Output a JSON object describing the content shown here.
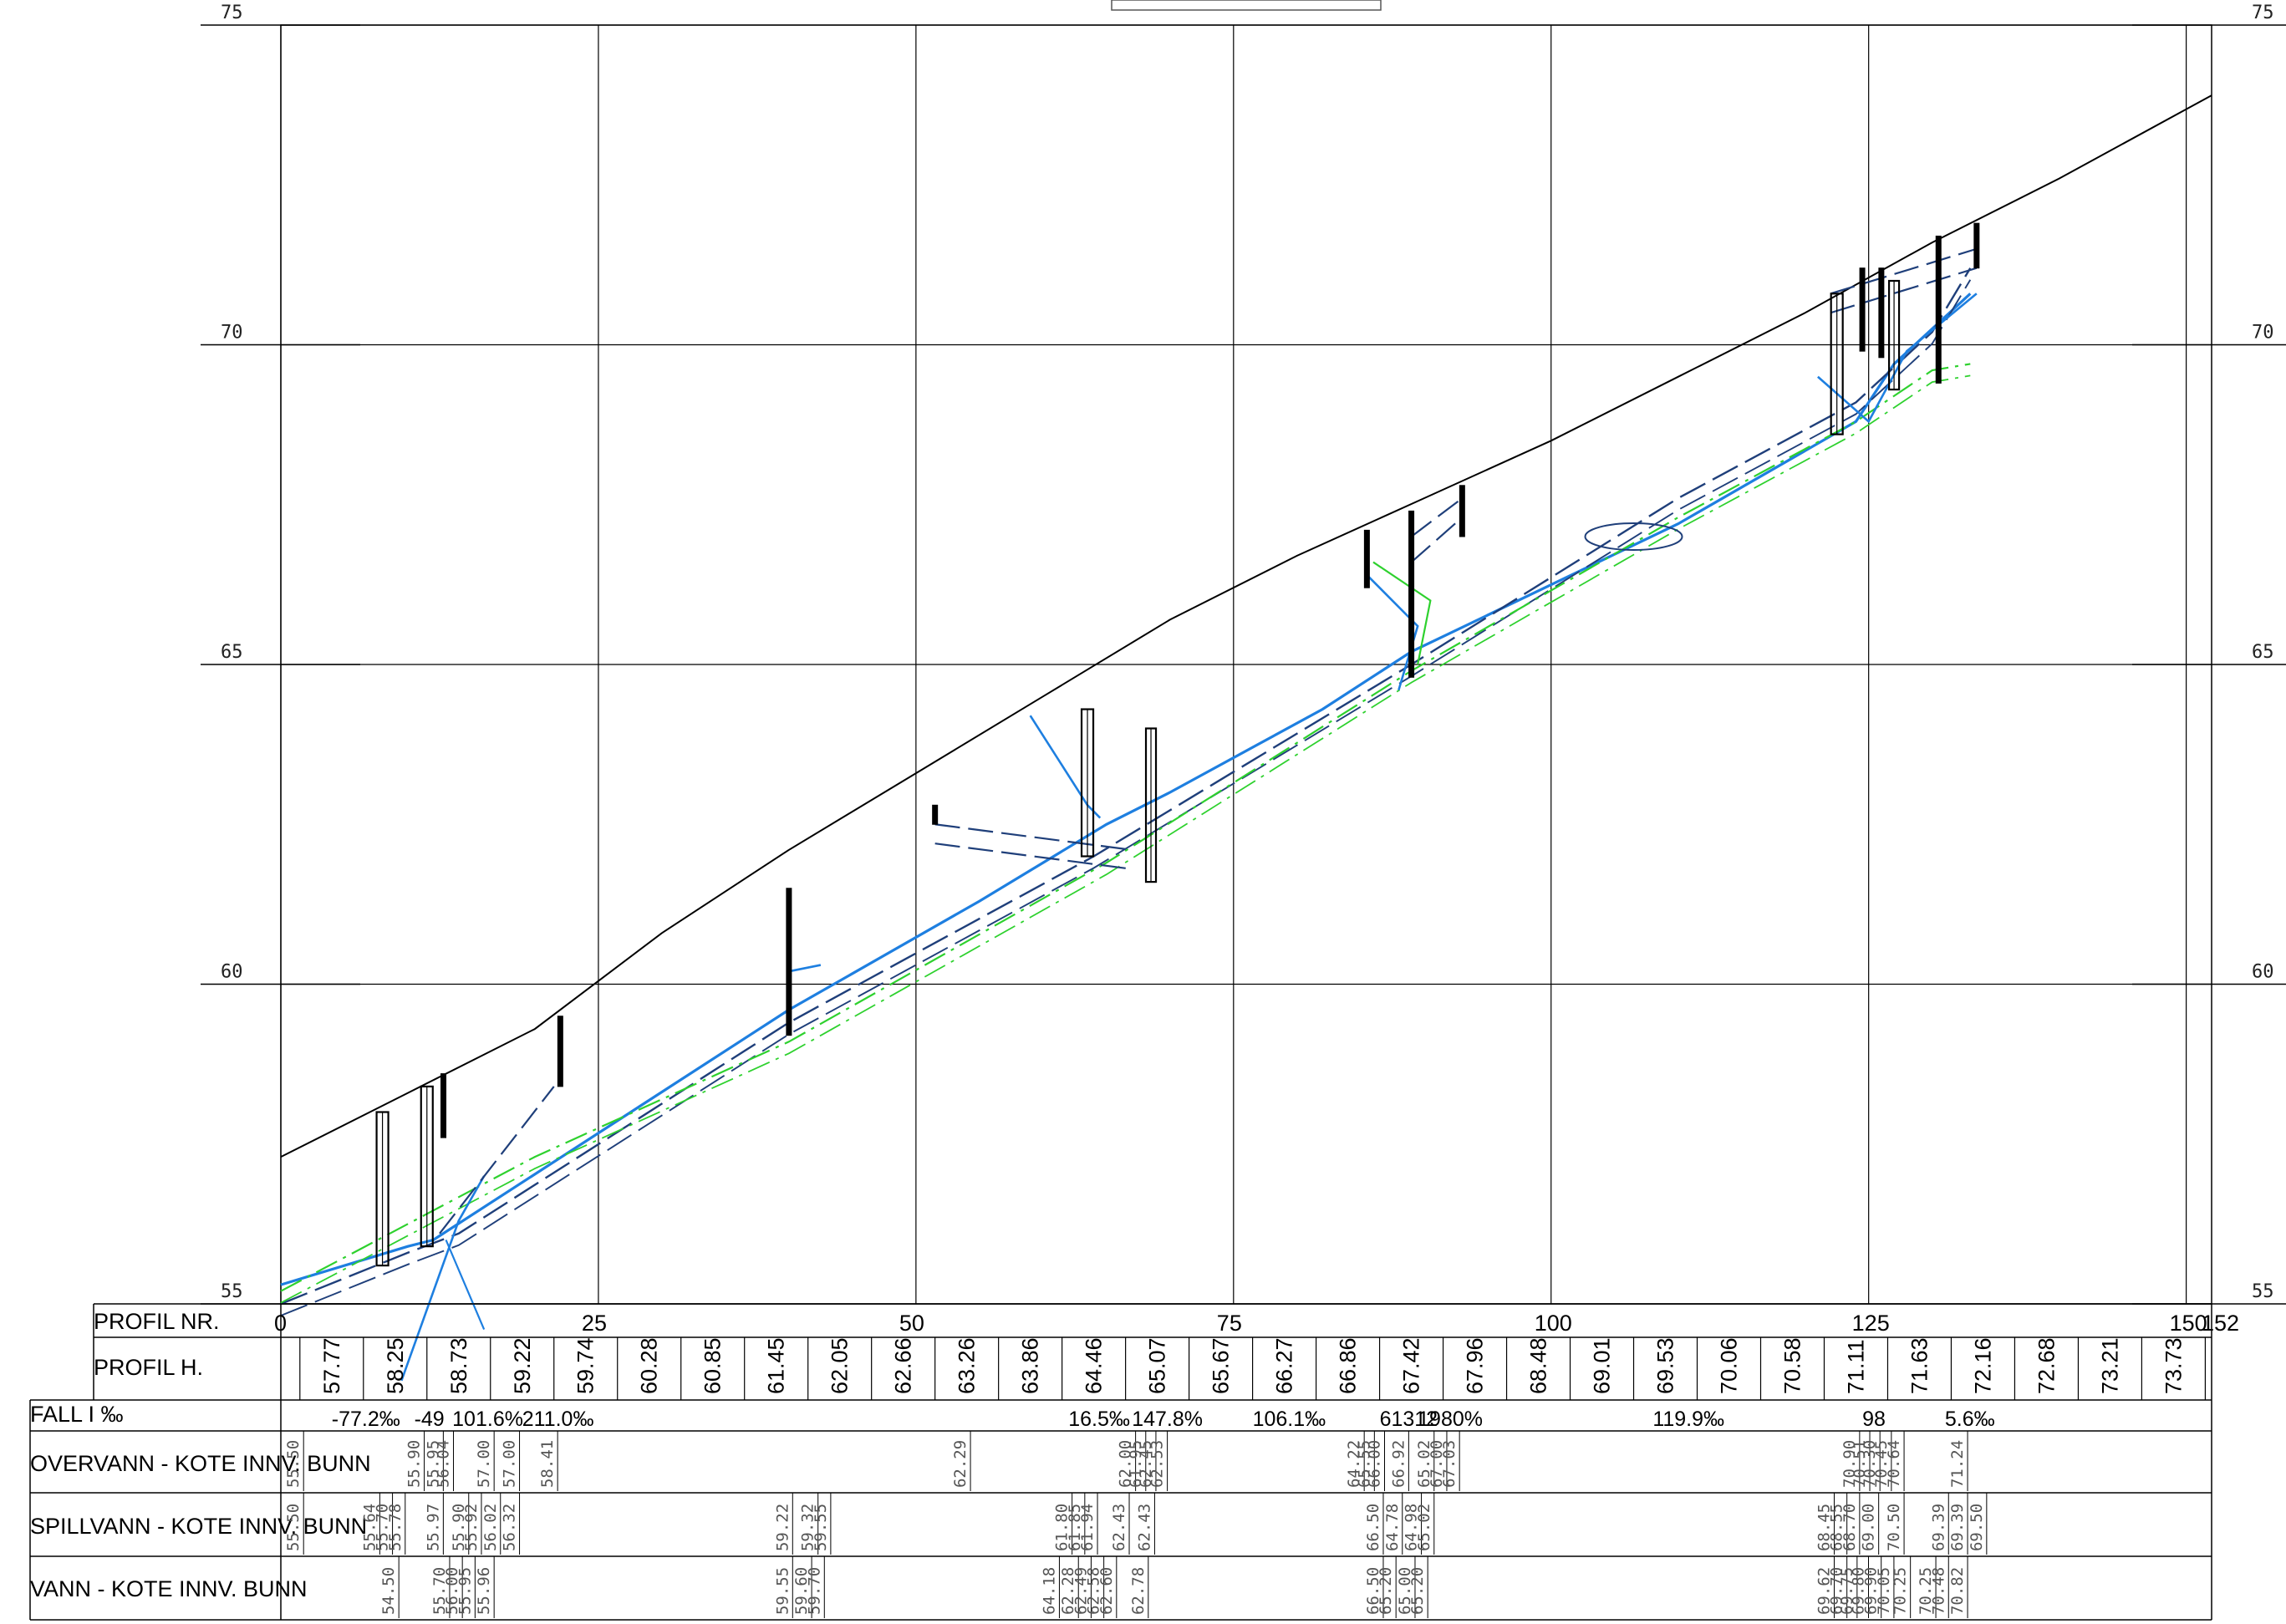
{
  "title_box": "",
  "y_ticks": [
    55,
    60,
    65,
    70,
    75
  ],
  "x_ticks": [
    0,
    25,
    50,
    75,
    100,
    125,
    150
  ],
  "x_end_label": "152",
  "rows": {
    "profil_nr": "PROFIL NR.",
    "profil_h": "PROFIL H.",
    "fall": "FALL I ‰",
    "overvann": "OVERVANN - KOTE INNV. BUNN",
    "spillvann": "SPILLVANN - KOTE INNV. BUNN",
    "vann": "VANN - KOTE INNV. BUNN"
  },
  "profil_h_values": [
    {
      "x": 4,
      "v": "57.77"
    },
    {
      "x": 9,
      "v": "58.25"
    },
    {
      "x": 14,
      "v": "58.73"
    },
    {
      "x": 19,
      "v": "59.22"
    },
    {
      "x": 24,
      "v": "59.74"
    },
    {
      "x": 29,
      "v": "60.28"
    },
    {
      "x": 34,
      "v": "60.85"
    },
    {
      "x": 39,
      "v": "61.45"
    },
    {
      "x": 44,
      "v": "62.05"
    },
    {
      "x": 49,
      "v": "62.66"
    },
    {
      "x": 54,
      "v": "63.26"
    },
    {
      "x": 59,
      "v": "63.86"
    },
    {
      "x": 64,
      "v": "64.46"
    },
    {
      "x": 69,
      "v": "65.07"
    },
    {
      "x": 74,
      "v": "65.67"
    },
    {
      "x": 79,
      "v": "66.27"
    },
    {
      "x": 84,
      "v": "66.86"
    },
    {
      "x": 89,
      "v": "67.42"
    },
    {
      "x": 94,
      "v": "67.96"
    },
    {
      "x": 99,
      "v": "68.48"
    },
    {
      "x": 104,
      "v": "69.01"
    },
    {
      "x": 109,
      "v": "69.53"
    },
    {
      "x": 114,
      "v": "70.06"
    },
    {
      "x": 119,
      "v": "70.58"
    },
    {
      "x": 124,
      "v": "71.11"
    },
    {
      "x": 129,
      "v": "71.63"
    },
    {
      "x": 134,
      "v": "72.16"
    },
    {
      "x": 139,
      "v": "72.68"
    },
    {
      "x": 144,
      "v": "73.21"
    },
    {
      "x": 149,
      "v": "73.73"
    }
  ],
  "fall_values": [
    {
      "x": 4,
      "v": "-77.2‰"
    },
    {
      "x": 10.5,
      "v": "-49"
    },
    {
      "x": 13.5,
      "v": "101.6%"
    },
    {
      "x": 19,
      "v": "211.0‰"
    },
    {
      "x": 62,
      "v": "16.5‰"
    },
    {
      "x": 67,
      "v": "147.8%"
    },
    {
      "x": 76.5,
      "v": "106.1‰"
    },
    {
      "x": 86.5,
      "v": "61312"
    },
    {
      "x": 89.5,
      "v": "1980%"
    },
    {
      "x": 108,
      "v": "119.9‰"
    },
    {
      "x": 124.5,
      "v": "98"
    },
    {
      "x": 131,
      "v": "5.6‰"
    }
  ],
  "overvann_values": [
    {
      "x": 1,
      "v": "55.50"
    },
    {
      "x": 10.5,
      "v": "55.90"
    },
    {
      "x": 12,
      "v": "55.95"
    },
    {
      "x": 12.8,
      "v": "56.04"
    },
    {
      "x": 16,
      "v": "57.00"
    },
    {
      "x": 18,
      "v": "57.00"
    },
    {
      "x": 21,
      "v": "58.41"
    },
    {
      "x": 53.5,
      "v": "62.29"
    },
    {
      "x": 66.5,
      "v": "62.00"
    },
    {
      "x": 67.3,
      "v": "61.95"
    },
    {
      "x": 68.1,
      "v": "62.45"
    },
    {
      "x": 69,
      "v": "62.53"
    },
    {
      "x": 84.5,
      "v": "64.22"
    },
    {
      "x": 85.3,
      "v": "65.55"
    },
    {
      "x": 86.1,
      "v": "66.00"
    },
    {
      "x": 88,
      "v": "66.92"
    },
    {
      "x": 90,
      "v": "65.02"
    },
    {
      "x": 91,
      "v": "67.00"
    },
    {
      "x": 92,
      "v": "67.03"
    },
    {
      "x": 123.5,
      "v": "70.90"
    },
    {
      "x": 124.3,
      "v": "70.51"
    },
    {
      "x": 125.1,
      "v": "70.30"
    },
    {
      "x": 126,
      "v": "70.45"
    },
    {
      "x": 127,
      "v": "70.64"
    },
    {
      "x": 132,
      "v": "71.24"
    }
  ],
  "spillvann_values": [
    {
      "x": 1,
      "v": "55.50"
    },
    {
      "x": 7,
      "v": "55.64"
    },
    {
      "x": 8,
      "v": "55.70"
    },
    {
      "x": 9,
      "v": "55.78"
    },
    {
      "x": 12,
      "v": "55.97"
    },
    {
      "x": 14,
      "v": "55.90"
    },
    {
      "x": 15,
      "v": "55.92"
    },
    {
      "x": 16.5,
      "v": "56.02"
    },
    {
      "x": 18,
      "v": "56.32"
    },
    {
      "x": 39.5,
      "v": "59.22"
    },
    {
      "x": 41.5,
      "v": "59.32"
    },
    {
      "x": 42.5,
      "v": "59.55"
    },
    {
      "x": 61.5,
      "v": "61.80"
    },
    {
      "x": 62.5,
      "v": "61.85"
    },
    {
      "x": 63.5,
      "v": "61.94"
    },
    {
      "x": 66,
      "v": "62.43"
    },
    {
      "x": 68,
      "v": "62.43"
    },
    {
      "x": 86,
      "v": "66.50"
    },
    {
      "x": 87.5,
      "v": "64.78"
    },
    {
      "x": 89,
      "v": "64.98"
    },
    {
      "x": 90,
      "v": "65.02"
    },
    {
      "x": 121.5,
      "v": "68.45"
    },
    {
      "x": 122.5,
      "v": "68.55"
    },
    {
      "x": 123.5,
      "v": "68.70"
    },
    {
      "x": 125,
      "v": "69.00"
    },
    {
      "x": 127,
      "v": "70.50"
    },
    {
      "x": 130.5,
      "v": "69.39"
    },
    {
      "x": 132,
      "v": "69.39"
    },
    {
      "x": 133.5,
      "v": "69.50"
    }
  ],
  "vann_values": [
    {
      "x": 8.5,
      "v": "54.50"
    },
    {
      "x": 12.5,
      "v": "55.70"
    },
    {
      "x": 13.5,
      "v": "56.00"
    },
    {
      "x": 14.5,
      "v": "55.95"
    },
    {
      "x": 16,
      "v": "55.96"
    },
    {
      "x": 39.5,
      "v": "59.55"
    },
    {
      "x": 41,
      "v": "59.60"
    },
    {
      "x": 42,
      "v": "59.70"
    },
    {
      "x": 60.5,
      "v": "64.18"
    },
    {
      "x": 62,
      "v": "62.28"
    },
    {
      "x": 63,
      "v": "62.49"
    },
    {
      "x": 64,
      "v": "62.58"
    },
    {
      "x": 65,
      "v": "62.60"
    },
    {
      "x": 67.5,
      "v": "62.78"
    },
    {
      "x": 86,
      "v": "66.50"
    },
    {
      "x": 87,
      "v": "65.20"
    },
    {
      "x": 88.5,
      "v": "65.00"
    },
    {
      "x": 89.5,
      "v": "65.20"
    },
    {
      "x": 121.5,
      "v": "69.62"
    },
    {
      "x": 122.5,
      "v": "69.70"
    },
    {
      "x": 123.3,
      "v": "69.75"
    },
    {
      "x": 124.2,
      "v": "69.80"
    },
    {
      "x": 125.2,
      "v": "69.90"
    },
    {
      "x": 126.2,
      "v": "70.05"
    },
    {
      "x": 127.5,
      "v": "70.25"
    },
    {
      "x": 129.5,
      "v": "70.25"
    },
    {
      "x": 130.5,
      "v": "70.48"
    },
    {
      "x": 132,
      "v": "70.82"
    }
  ],
  "colors": {
    "terrain": "#000000",
    "overvann": "#1e7fe0",
    "spillvann": "#1f3f7a",
    "vann": "#2ed12e",
    "grid": "#000000",
    "manhole": "#000000"
  },
  "chart_data": {
    "type": "line",
    "xlabel": "PROFIL NR.",
    "ylabel": "",
    "xlim": [
      0,
      152
    ],
    "ylim": [
      55,
      75
    ],
    "series": [
      {
        "points": [
          [
            0,
            57.3
          ],
          [
            10,
            58.3
          ],
          [
            20,
            59.3
          ],
          [
            30,
            60.8
          ],
          [
            40,
            62.1
          ],
          [
            50,
            63.3
          ],
          [
            60,
            64.5
          ],
          [
            70,
            65.7
          ],
          [
            80,
            66.7
          ],
          [
            90,
            67.6
          ],
          [
            100,
            68.5
          ],
          [
            110,
            69.5
          ],
          [
            120,
            70.5
          ],
          [
            130,
            71.6
          ],
          [
            140,
            72.6
          ],
          [
            152,
            73.9
          ]
        ]
      },
      {
        "points": [
          [
            0,
            55.3
          ],
          [
            10,
            55.9
          ],
          [
            12,
            56.0
          ],
          [
            40,
            59.6
          ],
          [
            55,
            61.3
          ],
          [
            65,
            62.5
          ],
          [
            70,
            63.0
          ],
          [
            82,
            64.3
          ],
          [
            89,
            65.2
          ],
          [
            110,
            67.2
          ],
          [
            124,
            68.8
          ],
          [
            127,
            69.7
          ],
          [
            133,
            70.8
          ]
        ]
      },
      {
        "points": [
          [
            0,
            55.0
          ],
          [
            10,
            55.8
          ],
          [
            14,
            56.1
          ],
          [
            40,
            59.4
          ],
          [
            64,
            62.0
          ],
          [
            89,
            65.0
          ],
          [
            110,
            67.6
          ],
          [
            124,
            69.1
          ],
          [
            130,
            70.2
          ],
          [
            133,
            71.2
          ]
        ]
      },
      {
        "points": [
          [
            0,
            55.2
          ],
          [
            20,
            57.3
          ],
          [
            40,
            59.1
          ],
          [
            65,
            61.9
          ],
          [
            89,
            64.9
          ],
          [
            110,
            67.3
          ],
          [
            124,
            68.8
          ],
          [
            130,
            69.6
          ],
          [
            133,
            69.7
          ]
        ]
      }
    ]
  }
}
